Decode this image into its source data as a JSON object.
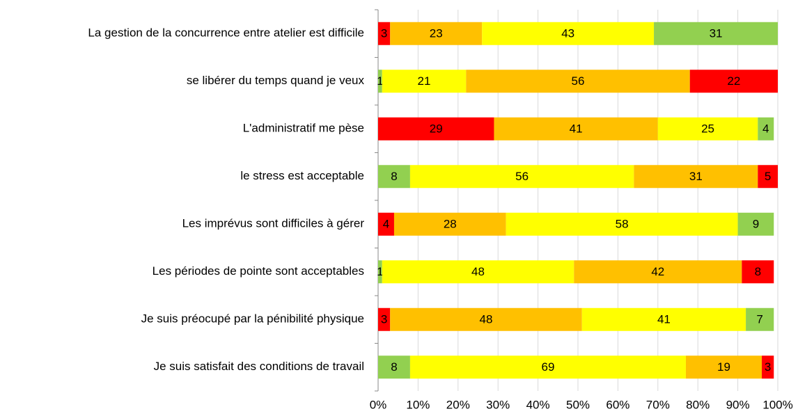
{
  "chart_data": {
    "type": "stacked-bar-horizontal",
    "categories": [
      "La gestion de la concurrence entre atelier est difficile",
      "se libérer du temps quand je veux",
      "L'administratif me pèse",
      "le stress est acceptable",
      "Les imprévus sont difficiles à gérer",
      "Les périodes de pointe sont acceptables",
      "Je suis préocupé par la pénibilité physique",
      "Je suis satisfait des conditions de travail"
    ],
    "series": [
      {
        "colors": [
          "#ff0000",
          "#92d050",
          "#ff0000",
          "#92d050",
          "#ff0000",
          "#92d050",
          "#ff0000",
          "#92d050"
        ],
        "values": [
          3,
          1,
          29,
          8,
          4,
          1,
          3,
          8
        ]
      },
      {
        "colors": [
          "#ffc000",
          "#ffff00",
          "#ffc000",
          "#ffff00",
          "#ffc000",
          "#ffff00",
          "#ffc000",
          "#ffff00"
        ],
        "values": [
          23,
          21,
          41,
          56,
          28,
          48,
          48,
          69
        ]
      },
      {
        "colors": [
          "#ffff00",
          "#ffc000",
          "#ffff00",
          "#ffc000",
          "#ffff00",
          "#ffc000",
          "#ffff00",
          "#ffc000"
        ],
        "values": [
          43,
          56,
          25,
          31,
          58,
          42,
          41,
          19
        ]
      },
      {
        "colors": [
          "#92d050",
          "#ff0000",
          "#92d050",
          "#ff0000",
          "#92d050",
          "#ff0000",
          "#92d050",
          "#ff0000"
        ],
        "values": [
          31,
          22,
          4,
          5,
          9,
          8,
          7,
          3
        ]
      }
    ],
    "xlim": [
      0,
      100
    ],
    "xticks": [
      {
        "value": 0,
        "label": "0%"
      },
      {
        "value": 10,
        "label": "10%"
      },
      {
        "value": 20,
        "label": "20%"
      },
      {
        "value": 30,
        "label": "30%"
      },
      {
        "value": 40,
        "label": "40%"
      },
      {
        "value": 50,
        "label": "50%"
      },
      {
        "value": 60,
        "label": "60%"
      },
      {
        "value": 70,
        "label": "70%"
      },
      {
        "value": 80,
        "label": "80%"
      },
      {
        "value": 90,
        "label": "90%"
      },
      {
        "value": 100,
        "label": "100%"
      }
    ],
    "grid": true
  }
}
